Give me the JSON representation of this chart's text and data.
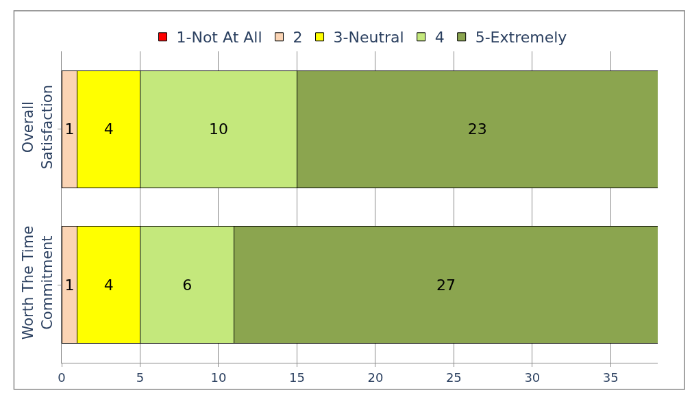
{
  "chart_data": {
    "type": "bar",
    "orientation": "horizontal",
    "stacked": true,
    "categories": [
      "Overall Satisfaction",
      "Worth The Time Commitment"
    ],
    "series": [
      {
        "name": "1-Not At All",
        "color": "#ff0000",
        "values": [
          0,
          0
        ],
        "value_labels": [
          null,
          null
        ]
      },
      {
        "name": "2",
        "color": "#fbd4b4",
        "values": [
          1,
          1
        ],
        "value_labels": [
          "1",
          "1"
        ]
      },
      {
        "name": "3-Neutral",
        "color": "#ffff00",
        "values": [
          4,
          4
        ],
        "value_labels": [
          "4",
          "4"
        ]
      },
      {
        "name": "4",
        "color": "#c4e87c",
        "values": [
          10,
          6
        ],
        "value_labels": [
          "10",
          "6"
        ]
      },
      {
        "name": "5-Extremely",
        "color": "#8ba54f",
        "values": [
          23,
          27
        ],
        "value_labels": [
          "23",
          "27"
        ]
      }
    ],
    "xlim": [
      0,
      38
    ],
    "xticks": [
      0,
      5,
      10,
      15,
      20,
      25,
      30,
      35
    ],
    "grid": "x",
    "legend": "top"
  }
}
